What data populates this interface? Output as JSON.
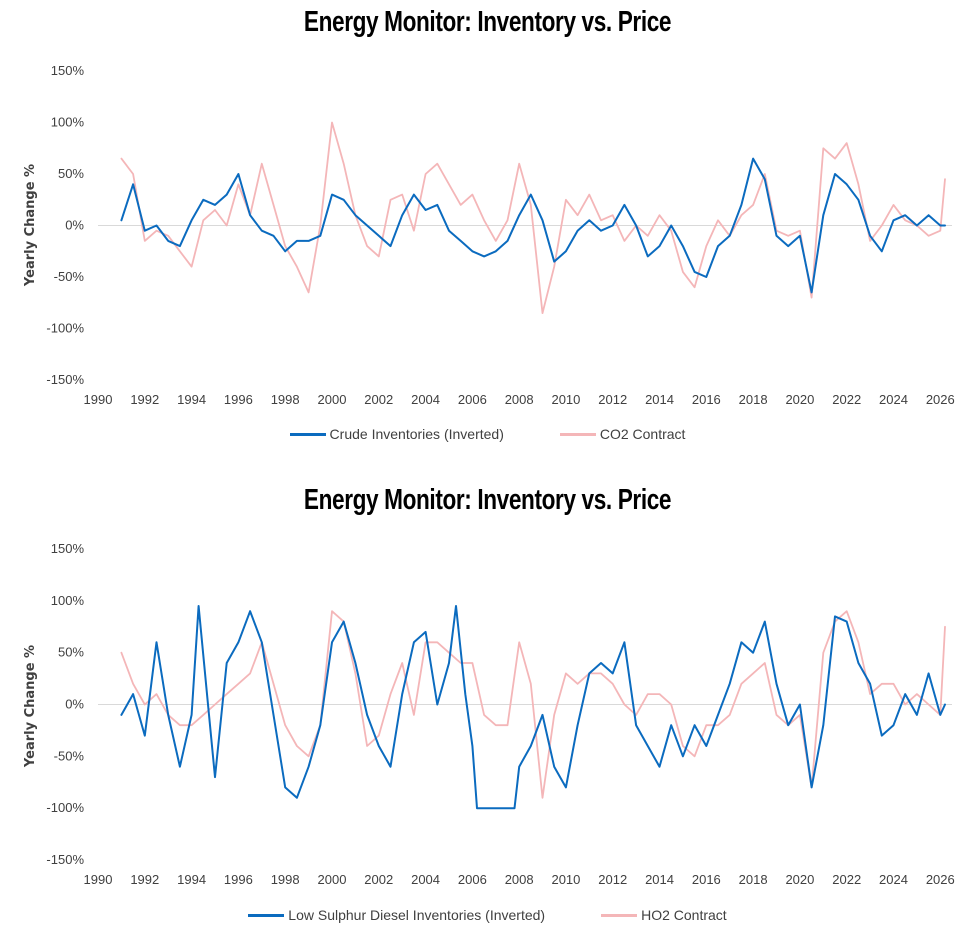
{
  "chart_data": [
    {
      "type": "line",
      "title": "Energy Monitor: Inventory vs. Price",
      "ylabel": "Yearly Change %",
      "xlabel": "",
      "xlim": [
        1990,
        2026.5
      ],
      "ylim": [
        -150,
        150
      ],
      "x_ticks": [
        "1990",
        "1992",
        "1994",
        "1996",
        "1998",
        "2000",
        "2002",
        "2004",
        "2006",
        "2008",
        "2010",
        "2012",
        "2014",
        "2016",
        "2018",
        "2020",
        "2022",
        "2024",
        "2026"
      ],
      "y_ticks": [
        "150%",
        "100%",
        "50%",
        "0%",
        "-50%",
        "-100%",
        "-150%"
      ],
      "legend_position": "bottom",
      "series": [
        {
          "name": "Crude Inventories (Inverted)",
          "color": "#0b6bbf",
          "x": [
            1991.0,
            1991.5,
            1992.0,
            1992.5,
            1993.0,
            1993.5,
            1994.0,
            1994.5,
            1995.0,
            1995.5,
            1996.0,
            1996.5,
            1997.0,
            1997.5,
            1998.0,
            1998.5,
            1999.0,
            1999.5,
            2000.0,
            2000.5,
            2001.0,
            2001.5,
            2002.0,
            2002.5,
            2003.0,
            2003.5,
            2004.0,
            2004.5,
            2005.0,
            2005.5,
            2006.0,
            2006.5,
            2007.0,
            2007.5,
            2008.0,
            2008.5,
            2009.0,
            2009.5,
            2010.0,
            2010.5,
            2011.0,
            2011.5,
            2012.0,
            2012.5,
            2013.0,
            2013.5,
            2014.0,
            2014.5,
            2015.0,
            2015.5,
            2016.0,
            2016.5,
            2017.0,
            2017.5,
            2018.0,
            2018.5,
            2019.0,
            2019.5,
            2020.0,
            2020.5,
            2021.0,
            2021.5,
            2022.0,
            2022.5,
            2023.0,
            2023.5,
            2024.0,
            2024.5,
            2025.0,
            2025.5,
            2026.0,
            2026.2
          ],
          "values": [
            5,
            40,
            -5,
            0,
            -15,
            -20,
            5,
            25,
            20,
            30,
            50,
            10,
            -5,
            -10,
            -25,
            -15,
            -15,
            -10,
            30,
            25,
            10,
            0,
            -10,
            -20,
            10,
            30,
            15,
            20,
            -5,
            -15,
            -25,
            -30,
            -25,
            -15,
            10,
            30,
            5,
            -35,
            -25,
            -5,
            5,
            -5,
            0,
            20,
            0,
            -30,
            -20,
            0,
            -20,
            -45,
            -50,
            -20,
            -10,
            20,
            65,
            45,
            -10,
            -20,
            -10,
            -65,
            10,
            50,
            40,
            25,
            -10,
            -25,
            5,
            10,
            0,
            10,
            0,
            0
          ]
        },
        {
          "name": "CO2 Contract",
          "color": "#f4b6b8",
          "x": [
            1991.0,
            1991.5,
            1992.0,
            1992.5,
            1993.0,
            1993.5,
            1994.0,
            1994.5,
            1995.0,
            1995.5,
            1996.0,
            1996.5,
            1997.0,
            1997.5,
            1998.0,
            1998.5,
            1999.0,
            1999.5,
            2000.0,
            2000.5,
            2001.0,
            2001.5,
            2002.0,
            2002.5,
            2003.0,
            2003.5,
            2004.0,
            2004.5,
            2005.0,
            2005.5,
            2006.0,
            2006.5,
            2007.0,
            2007.5,
            2008.0,
            2008.5,
            2009.0,
            2009.5,
            2010.0,
            2010.5,
            2011.0,
            2011.5,
            2012.0,
            2012.5,
            2013.0,
            2013.5,
            2014.0,
            2014.5,
            2015.0,
            2015.5,
            2016.0,
            2016.5,
            2017.0,
            2017.5,
            2018.0,
            2018.5,
            2019.0,
            2019.5,
            2020.0,
            2020.5,
            2021.0,
            2021.5,
            2022.0,
            2022.5,
            2023.0,
            2023.5,
            2024.0,
            2024.5,
            2025.0,
            2025.5,
            2026.0,
            2026.2
          ],
          "values": [
            65,
            50,
            -15,
            -5,
            -10,
            -25,
            -40,
            5,
            15,
            0,
            40,
            10,
            60,
            20,
            -20,
            -40,
            -65,
            0,
            100,
            60,
            10,
            -20,
            -30,
            25,
            30,
            -5,
            50,
            60,
            40,
            20,
            30,
            5,
            -15,
            5,
            60,
            20,
            -85,
            -40,
            25,
            10,
            30,
            5,
            10,
            -15,
            0,
            -10,
            10,
            -5,
            -45,
            -60,
            -20,
            5,
            -10,
            10,
            20,
            50,
            -5,
            -10,
            -5,
            -70,
            75,
            65,
            80,
            40,
            -15,
            0,
            20,
            5,
            0,
            -10,
            -5,
            45
          ]
        }
      ]
    },
    {
      "type": "line",
      "title": "Energy Monitor: Inventory vs. Price",
      "ylabel": "Yearly Change %",
      "xlabel": "",
      "xlim": [
        1990,
        2026.5
      ],
      "ylim": [
        -150,
        150
      ],
      "x_ticks": [
        "1990",
        "1992",
        "1994",
        "1996",
        "1998",
        "2000",
        "2002",
        "2004",
        "2006",
        "2008",
        "2010",
        "2012",
        "2014",
        "2016",
        "2018",
        "2020",
        "2022",
        "2024",
        "2026"
      ],
      "y_ticks": [
        "150%",
        "100%",
        "50%",
        "0%",
        "-50%",
        "-100%",
        "-150%"
      ],
      "legend_position": "bottom",
      "series": [
        {
          "name": "Low Sulphur Diesel Inventories (Inverted)",
          "color": "#0b6bbf",
          "x": [
            1991.0,
            1991.5,
            1992.0,
            1992.5,
            1993.0,
            1993.5,
            1994.0,
            1994.3,
            1994.7,
            1995.0,
            1995.5,
            1996.0,
            1996.5,
            1997.0,
            1997.5,
            1998.0,
            1998.5,
            1999.0,
            1999.5,
            2000.0,
            2000.5,
            2001.0,
            2001.5,
            2002.0,
            2002.5,
            2003.0,
            2003.5,
            2004.0,
            2004.5,
            2005.0,
            2005.3,
            2005.7,
            2006.0,
            2006.2,
            2006.5,
            2007.0,
            2007.5,
            2007.8,
            2008.0,
            2008.5,
            2009.0,
            2009.5,
            2010.0,
            2010.5,
            2011.0,
            2011.5,
            2012.0,
            2012.5,
            2013.0,
            2013.5,
            2014.0,
            2014.5,
            2015.0,
            2015.5,
            2016.0,
            2016.5,
            2017.0,
            2017.5,
            2018.0,
            2018.5,
            2019.0,
            2019.5,
            2020.0,
            2020.5,
            2021.0,
            2021.5,
            2022.0,
            2022.5,
            2023.0,
            2023.5,
            2024.0,
            2024.5,
            2025.0,
            2025.5,
            2026.0,
            2026.2
          ],
          "values": [
            -10,
            10,
            -30,
            60,
            -10,
            -60,
            -10,
            95,
            0,
            -70,
            40,
            60,
            90,
            60,
            -10,
            -80,
            -90,
            -60,
            -20,
            60,
            80,
            40,
            -10,
            -40,
            -60,
            10,
            60,
            70,
            0,
            40,
            95,
            10,
            -40,
            -100,
            -100,
            -100,
            -100,
            -100,
            -60,
            -40,
            -10,
            -60,
            -80,
            -20,
            30,
            40,
            30,
            60,
            -20,
            -40,
            -60,
            -20,
            -50,
            -20,
            -40,
            -10,
            20,
            60,
            50,
            80,
            20,
            -20,
            0,
            -80,
            -20,
            85,
            80,
            40,
            20,
            -30,
            -20,
            10,
            -10,
            30,
            -10,
            0
          ]
        },
        {
          "name": "HO2 Contract",
          "color": "#f4b6b8",
          "x": [
            1991.0,
            1991.5,
            1992.0,
            1992.5,
            1993.0,
            1993.5,
            1994.0,
            1994.5,
            1995.0,
            1995.5,
            1996.0,
            1996.5,
            1997.0,
            1997.5,
            1998.0,
            1998.5,
            1999.0,
            1999.5,
            2000.0,
            2000.5,
            2001.0,
            2001.5,
            2002.0,
            2002.5,
            2003.0,
            2003.5,
            2004.0,
            2004.5,
            2005.0,
            2005.5,
            2006.0,
            2006.5,
            2007.0,
            2007.5,
            2008.0,
            2008.5,
            2009.0,
            2009.5,
            2010.0,
            2010.5,
            2011.0,
            2011.5,
            2012.0,
            2012.5,
            2013.0,
            2013.5,
            2014.0,
            2014.5,
            2015.0,
            2015.5,
            2016.0,
            2016.5,
            2017.0,
            2017.5,
            2018.0,
            2018.5,
            2019.0,
            2019.5,
            2020.0,
            2020.5,
            2021.0,
            2021.5,
            2022.0,
            2022.5,
            2023.0,
            2023.5,
            2024.0,
            2024.5,
            2025.0,
            2025.5,
            2026.0,
            2026.2
          ],
          "values": [
            50,
            20,
            0,
            10,
            -10,
            -20,
            -20,
            -10,
            0,
            10,
            20,
            30,
            60,
            20,
            -20,
            -40,
            -50,
            -20,
            90,
            80,
            30,
            -40,
            -30,
            10,
            40,
            -10,
            60,
            60,
            50,
            40,
            40,
            -10,
            -20,
            -20,
            60,
            20,
            -90,
            -10,
            30,
            20,
            30,
            30,
            20,
            0,
            -10,
            10,
            10,
            0,
            -40,
            -50,
            -20,
            -20,
            -10,
            20,
            30,
            40,
            -10,
            -20,
            -10,
            -80,
            50,
            80,
            90,
            60,
            10,
            20,
            20,
            0,
            10,
            0,
            -10,
            75
          ]
        }
      ]
    }
  ]
}
